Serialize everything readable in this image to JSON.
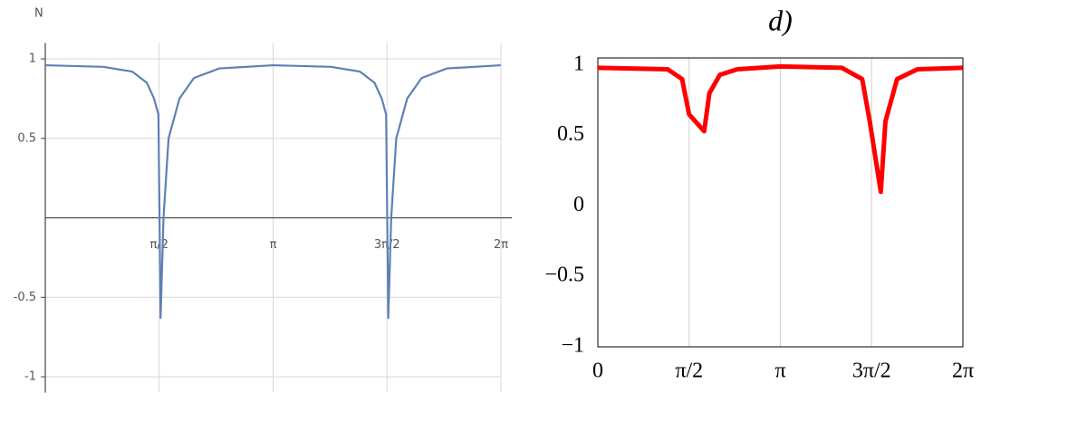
{
  "chart_data": [
    {
      "type": "line",
      "ylabel": "N",
      "x": [
        0,
        0.8,
        1.2,
        1.4,
        1.5,
        1.56,
        1.59,
        1.63,
        1.7,
        1.85,
        2.05,
        2.4,
        3.14,
        3.94,
        4.34,
        4.54,
        4.64,
        4.7,
        4.73,
        4.77,
        4.84,
        4.99,
        5.19,
        5.54,
        6.28
      ],
      "values": [
        0.96,
        0.95,
        0.92,
        0.85,
        0.75,
        0.65,
        -0.63,
        0,
        0.5,
        0.75,
        0.88,
        0.94,
        0.96,
        0.95,
        0.92,
        0.85,
        0.75,
        0.65,
        -0.63,
        0,
        0.5,
        0.75,
        0.88,
        0.94,
        0.96
      ],
      "color": "#5e81b5",
      "xlim": [
        0,
        6.2832
      ],
      "ylim": [
        -1.1,
        1.1
      ],
      "xticks": [
        {
          "value": 1.5708,
          "label": "π/2"
        },
        {
          "value": 3.1416,
          "label": "π"
        },
        {
          "value": 4.7124,
          "label": "3π/2"
        },
        {
          "value": 6.2832,
          "label": "2π"
        }
      ],
      "yticks": [
        1,
        0.5,
        -0.5,
        -1
      ],
      "grid": "both",
      "frame": false
    },
    {
      "type": "line",
      "title": "d)",
      "x": [
        0,
        1.2,
        1.45,
        1.57,
        1.83,
        1.92,
        2.1,
        2.4,
        3.14,
        4.2,
        4.55,
        4.68,
        4.87,
        4.95,
        5.15,
        5.5,
        6.28
      ],
      "values": [
        0.98,
        0.97,
        0.9,
        0.65,
        0.53,
        0.8,
        0.93,
        0.97,
        0.99,
        0.98,
        0.9,
        0.6,
        0.1,
        0.6,
        0.9,
        0.97,
        0.98
      ],
      "color": "#ff0000",
      "xlim": [
        0,
        6.2832
      ],
      "ylim": [
        -1,
        1.05
      ],
      "xticks": [
        0,
        {
          "value": 1.5708,
          "label": "π/2"
        },
        {
          "value": 3.1416,
          "label": "π"
        },
        {
          "value": 4.7124,
          "label": "3π/2"
        },
        {
          "value": 6.2832,
          "label": "2π"
        }
      ],
      "yticks": [
        1,
        0.5,
        0,
        {
          "value": -0.5,
          "label": "−0.5"
        },
        {
          "value": -1,
          "label": "−1"
        }
      ],
      "grid": "x",
      "frame": true
    }
  ]
}
